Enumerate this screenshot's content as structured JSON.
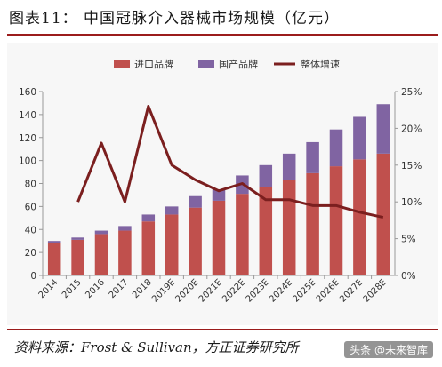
{
  "title": "图表11：  中国冠脉介入器械市场规模（亿元）",
  "source": "资料来源：Frost & Sullivan，方正证券研究所",
  "watermark": "头条 @未来智库",
  "colors": {
    "imported": "#c0504d",
    "domestic": "#8064a2",
    "growth": "#7b1f1f",
    "accent": "#9b1c1c"
  },
  "chart_data": {
    "type": "bar",
    "stacked": true,
    "categories": [
      "2014",
      "2015",
      "2016",
      "2017",
      "2018",
      "2019E",
      "2020E",
      "2021E",
      "2022E",
      "2023E",
      "2024E",
      "2025E",
      "2026E",
      "2027E",
      "2028E"
    ],
    "series": [
      {
        "name": "进口品牌",
        "type": "bar",
        "axis": "left",
        "values": [
          28,
          31,
          36,
          39,
          47,
          53,
          59,
          65,
          71,
          77,
          83,
          89,
          95,
          101,
          106
        ]
      },
      {
        "name": "国产品牌",
        "type": "bar",
        "axis": "left",
        "values": [
          2,
          2,
          3,
          4,
          6,
          7,
          10,
          10,
          16,
          19,
          23,
          27,
          32,
          37,
          43
        ]
      },
      {
        "name": "整体增速",
        "type": "line",
        "axis": "right",
        "values": [
          null,
          10,
          18,
          10,
          23,
          15,
          13,
          11.5,
          12.5,
          10.3,
          10.3,
          9.5,
          9.5,
          8.6,
          7.9
        ]
      }
    ],
    "yleft": {
      "min": 0,
      "max": 160,
      "ticks": [
        0,
        20,
        40,
        60,
        80,
        100,
        120,
        140,
        160
      ]
    },
    "yright": {
      "min": 0,
      "max": 25,
      "ticks": [
        "0%",
        "5%",
        "10%",
        "15%",
        "20%",
        "25%"
      ]
    },
    "legend": "top-center",
    "grid": false
  }
}
